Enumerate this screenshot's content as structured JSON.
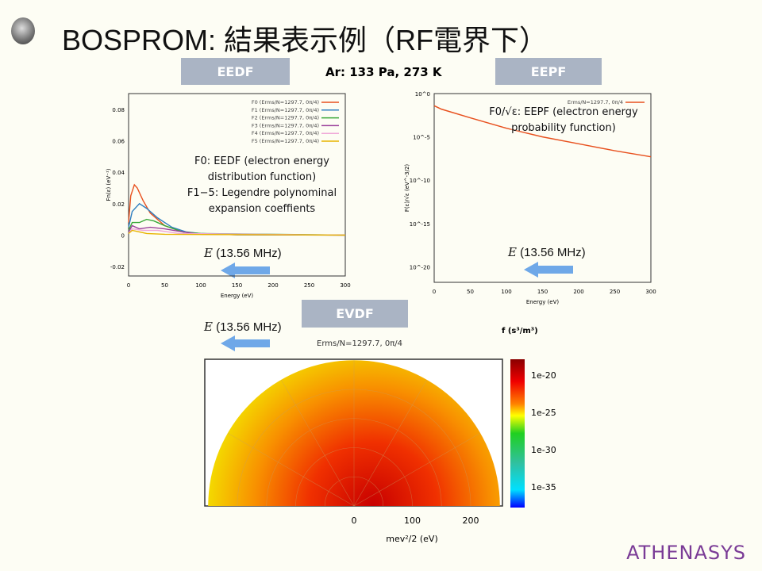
{
  "title": "BOSPROM: 結果表示例（RF電界下）",
  "condition": "Ar: 133 Pa, 273 K",
  "tags": {
    "eedf": "EEDF",
    "eepf": "EEPF",
    "evdf": "EVDF"
  },
  "field_label": "(13.56 MHz)",
  "field_symbol": "E",
  "brand": "ATHENASYS",
  "notes": {
    "eedf_line1": "F0: EEDF (electron energy",
    "eedf_line2": "distribution function)",
    "eedf_line3": "F1−5: Legendre polynominal",
    "eedf_line4": "expansion coeffients",
    "eepf_line1": "F0/√ε: EEPF (electron energy",
    "eepf_line2": "probability function)"
  },
  "chart_data": [
    {
      "type": "line",
      "title": "EEDF",
      "xlabel": "Energy (eV)",
      "ylabel": "Fn(ε) (eV⁻¹)",
      "xlim": [
        0,
        300
      ],
      "ylim": [
        -0.026,
        0.09
      ],
      "xticks": [
        0,
        50,
        100,
        150,
        200,
        250,
        300
      ],
      "yticks": [
        -0.02,
        0,
        0.02,
        0.04,
        0.06,
        0.08
      ],
      "series": [
        {
          "name": "F0 (Erms/N=1297.7, 0π/4)",
          "color": "#e8501e",
          "x": [
            0,
            3,
            8,
            12,
            20,
            30,
            50,
            75,
            100,
            150,
            300
          ],
          "y": [
            0.008,
            0.025,
            0.032,
            0.03,
            0.022,
            0.014,
            0.006,
            0.002,
            0.0008,
            0.0002,
            0
          ]
        },
        {
          "name": "F1 (Erms/N=1297.7, 0π/4)",
          "color": "#2f7fc0",
          "x": [
            0,
            5,
            15,
            25,
            40,
            60,
            80,
            100,
            150,
            300
          ],
          "y": [
            0.005,
            0.015,
            0.02,
            0.017,
            0.011,
            0.005,
            0.002,
            0.001,
            0.0002,
            0
          ]
        },
        {
          "name": "F2 (Erms/N=1297.7, 0π/4)",
          "color": "#3aa83a",
          "x": [
            0,
            5,
            15,
            25,
            35,
            50,
            75,
            100,
            300
          ],
          "y": [
            0.003,
            0.008,
            0.008,
            0.01,
            0.009,
            0.006,
            0.002,
            0.001,
            0
          ]
        },
        {
          "name": "F3 (Erms/N=1297.7, 0π/4)",
          "color": "#9b3f9b",
          "x": [
            0,
            5,
            15,
            30,
            50,
            75,
            100,
            300
          ],
          "y": [
            0.002,
            0.006,
            0.004,
            0.005,
            0.004,
            0.002,
            0.0005,
            0
          ]
        },
        {
          "name": "F4 (Erms/N=1297.7, 0π/4)",
          "color": "#f0a8d8",
          "x": [
            0,
            5,
            20,
            40,
            70,
            300
          ],
          "y": [
            0.001,
            0.004,
            0.003,
            0.003,
            0.001,
            0
          ]
        },
        {
          "name": "F5 (Erms/N=1297.7, 0π/4)",
          "color": "#e8b400",
          "x": [
            0,
            5,
            15,
            25,
            50,
            300
          ],
          "y": [
            0.001,
            0.003,
            0.002,
            0.001,
            0.0005,
            0
          ]
        }
      ]
    },
    {
      "type": "line",
      "title": "EEPF",
      "xlabel": "Energy (eV)",
      "ylabel": "F(ε)/√ε (eV^-3/2)",
      "yscale": "log",
      "xlim": [
        0,
        300
      ],
      "ylim_exp": [
        -21.8,
        0
      ],
      "xticks": [
        0,
        50,
        100,
        150,
        200,
        250,
        300
      ],
      "yticks": [
        "10^0",
        "10^-5",
        "10^-10",
        "10^-15",
        "10^-20"
      ],
      "series": [
        {
          "name": "Erms/N=1297.7, 0π/4",
          "color": "#e8501e",
          "x": [
            0,
            10,
            50,
            100,
            150,
            200,
            250,
            300
          ],
          "y_exp": [
            -1.4,
            -1.8,
            -2.8,
            -4.0,
            -5.0,
            -5.8,
            -6.6,
            -7.3
          ]
        }
      ]
    },
    {
      "type": "heatmap",
      "title": "EVDF",
      "subtitle": "Erms/N=1297.7, 0π/4",
      "xlabel": "mev²/2 (eV)",
      "colorbar_label": "f (s³/m³)",
      "xticks": [
        0,
        100,
        200
      ],
      "rmax": 250,
      "colorbar_ticks": [
        "1e-20",
        "1e-25",
        "1e-30",
        "1e-35"
      ]
    }
  ]
}
